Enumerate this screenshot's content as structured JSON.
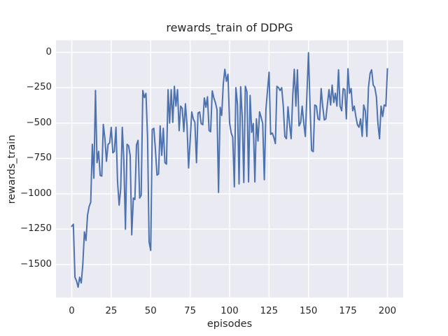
{
  "chart": {
    "title": "rewards_train of DDPG",
    "xlabel": "episodes",
    "ylabel": "rewards_train"
  },
  "chart_data": {
    "type": "line",
    "title": "rewards_train of DDPG",
    "xlabel": "episodes",
    "ylabel": "rewards_train",
    "legend": false,
    "grid": true,
    "line_color": "#4C72B0",
    "plot_background": "#EAEAF2",
    "grid_color": "#FFFFFF",
    "text_color": "#262626",
    "xlim": [
      -10,
      210
    ],
    "ylim": [
      -1733,
      85
    ],
    "x_ticks": [
      0,
      25,
      50,
      75,
      100,
      125,
      150,
      175,
      200
    ],
    "y_ticks": [
      0,
      -250,
      -500,
      -750,
      -1000,
      -1250,
      -1500
    ],
    "x_start": 0,
    "x_step": 1,
    "values": [
      -1230,
      -1215,
      -1590,
      -1615,
      -1660,
      -1590,
      -1630,
      -1500,
      -1270,
      -1330,
      -1150,
      -1090,
      -1060,
      -650,
      -890,
      -270,
      -780,
      -700,
      -870,
      -875,
      -510,
      -610,
      -770,
      -650,
      -640,
      -530,
      -710,
      -700,
      -530,
      -910,
      -1080,
      -965,
      -530,
      -760,
      -1250,
      -650,
      -660,
      -730,
      -1290,
      -1030,
      -1040,
      -655,
      -622,
      -1030,
      -1010,
      -270,
      -320,
      -290,
      -600,
      -1340,
      -1400,
      -545,
      -537,
      -685,
      -868,
      -860,
      -520,
      -728,
      -537,
      -780,
      -790,
      -264,
      -500,
      -264,
      -495,
      -240,
      -380,
      -264,
      -554,
      -380,
      -396,
      -560,
      -364,
      -512,
      -817,
      -627,
      -421,
      -470,
      -495,
      -780,
      -429,
      -421,
      -504,
      -512,
      -322,
      -388,
      -314,
      -553,
      -561,
      -273,
      -322,
      -355,
      -404,
      -990,
      -388,
      -446,
      -223,
      -120,
      -205,
      -155,
      -500,
      -570,
      -600,
      -950,
      -250,
      -370,
      -930,
      -243,
      -454,
      -920,
      -240,
      -280,
      -916,
      -305,
      -565,
      -503,
      -916,
      -470,
      -627,
      -420,
      -460,
      -503,
      -900,
      -404,
      -272,
      -140,
      -580,
      -570,
      -600,
      -645,
      -240,
      -250,
      -270,
      -250,
      -380,
      -595,
      -610,
      -385,
      -510,
      -610,
      -310,
      -120,
      -380,
      -124,
      -520,
      -496,
      -380,
      -503,
      -595,
      -289,
      -2,
      -396,
      -693,
      -702,
      -372,
      -380,
      -470,
      -478,
      -256,
      -380,
      -478,
      -470,
      -364,
      -264,
      -372,
      -231,
      -355,
      -289,
      -380,
      -124,
      -380,
      -413,
      -256,
      -264,
      -470,
      -116,
      -289,
      -256,
      -413,
      -380,
      -454,
      -512,
      -529,
      -470,
      -594,
      -372,
      -413,
      -594,
      -248,
      -149,
      -124,
      -231,
      -248,
      -314,
      -503,
      -611,
      -380,
      -454,
      -372,
      -380,
      -116
    ]
  }
}
